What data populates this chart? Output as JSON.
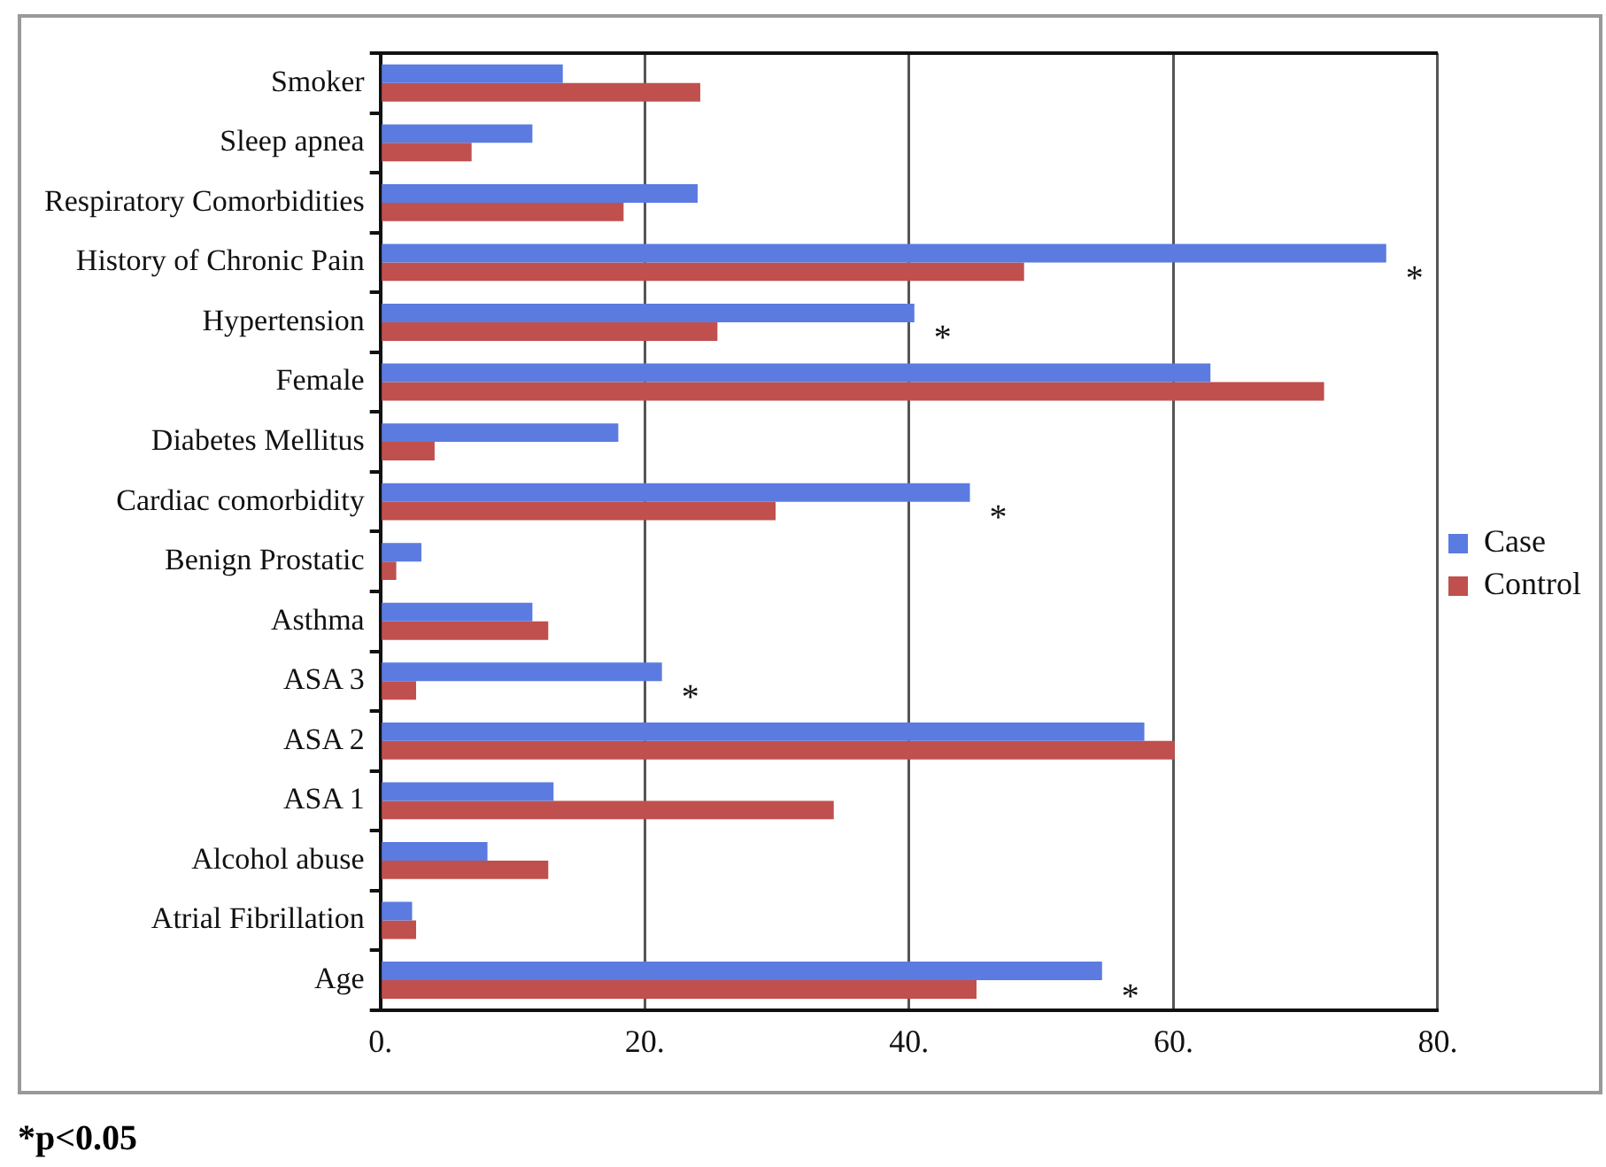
{
  "chart_data": {
    "type": "bar",
    "orientation": "horizontal",
    "categories": [
      "Smoker",
      "Sleep apnea",
      "Respiratory Comorbidities",
      "History of Chronic Pain",
      "Hypertension",
      "Female",
      "Diabetes Mellitus",
      "Cardiac comorbidity",
      "Benign Prostatic",
      "Asthma",
      "ASA 3",
      "ASA 2",
      "ASA 1",
      "Alcohol abuse",
      "Atrial Fibrillation",
      "Age"
    ],
    "series": [
      {
        "name": "Case",
        "color": "#5b7be0",
        "values": [
          13.8,
          11.5,
          24.0,
          76.1,
          40.4,
          62.8,
          18.0,
          44.6,
          3.1,
          11.5,
          21.3,
          57.8,
          13.1,
          8.1,
          2.4,
          54.6
        ]
      },
      {
        "name": "Control",
        "color": "#c0504d",
        "values": [
          24.2,
          6.9,
          18.4,
          48.7,
          25.5,
          71.4,
          4.1,
          29.9,
          1.2,
          12.7,
          2.7,
          60.1,
          34.3,
          12.7,
          2.7,
          45.1
        ]
      }
    ],
    "xlim": [
      0,
      80
    ],
    "xticks": [
      {
        "value": 0,
        "label": "0."
      },
      {
        "value": 20,
        "label": "20."
      },
      {
        "value": 40,
        "label": "40."
      },
      {
        "value": 60,
        "label": "60."
      },
      {
        "value": 80,
        "label": "80."
      }
    ],
    "grid": "x",
    "legend": "right",
    "annotations": [
      {
        "text": "*",
        "x": 76.1,
        "y": "History of Chronic Pain"
      },
      {
        "text": "*",
        "x": 40.4,
        "y": "Hypertension"
      },
      {
        "text": "*",
        "x": 44.6,
        "y": "Cardiac comorbidity"
      },
      {
        "text": "*",
        "x": 21.3,
        "y": "ASA 3"
      },
      {
        "text": "*",
        "x": 54.6,
        "y": "Age"
      },
      "*p<0.05"
    ]
  }
}
